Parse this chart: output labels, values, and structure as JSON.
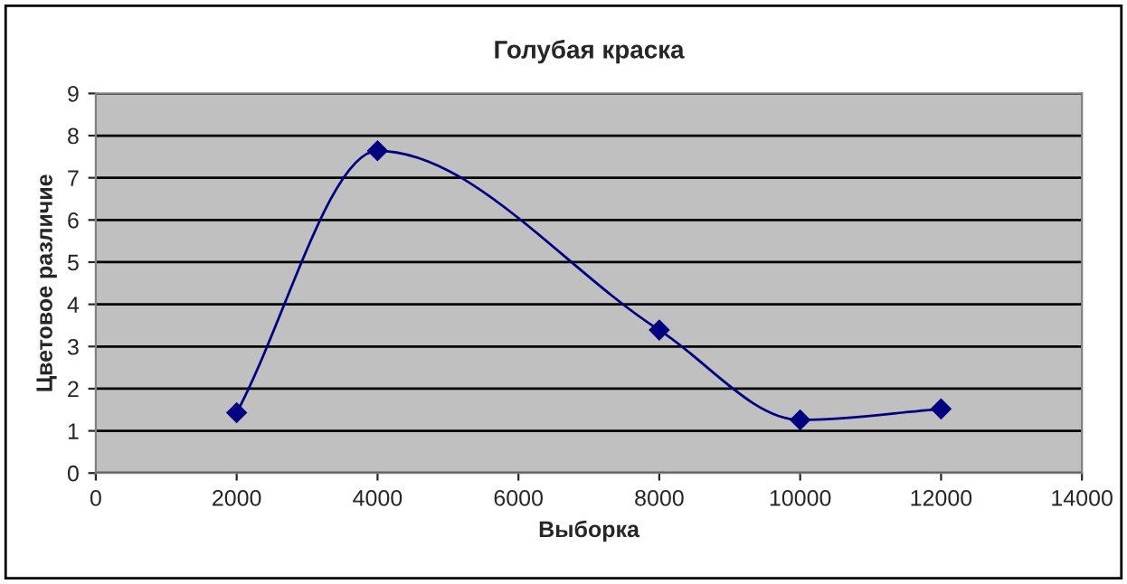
{
  "chart_data": {
    "type": "line",
    "title": "Голубая краска",
    "xlabel": "Выборка",
    "ylabel": "Цветовое различие",
    "x": [
      2000,
      4000,
      8000,
      10000,
      12000
    ],
    "series": [
      {
        "color": "#000080",
        "values": [
          1.43,
          7.64,
          3.39,
          1.26,
          1.52
        ]
      }
    ],
    "xlim": [
      0,
      14000
    ],
    "xticks": [
      0,
      2000,
      4000,
      6000,
      8000,
      10000,
      12000,
      14000
    ],
    "ylim": [
      0,
      9
    ],
    "yticks": [
      0,
      1,
      2,
      3,
      4,
      5,
      6,
      7,
      8,
      9
    ],
    "grid": "y",
    "marker": "diamond",
    "line_style": "solid",
    "legend": false
  }
}
